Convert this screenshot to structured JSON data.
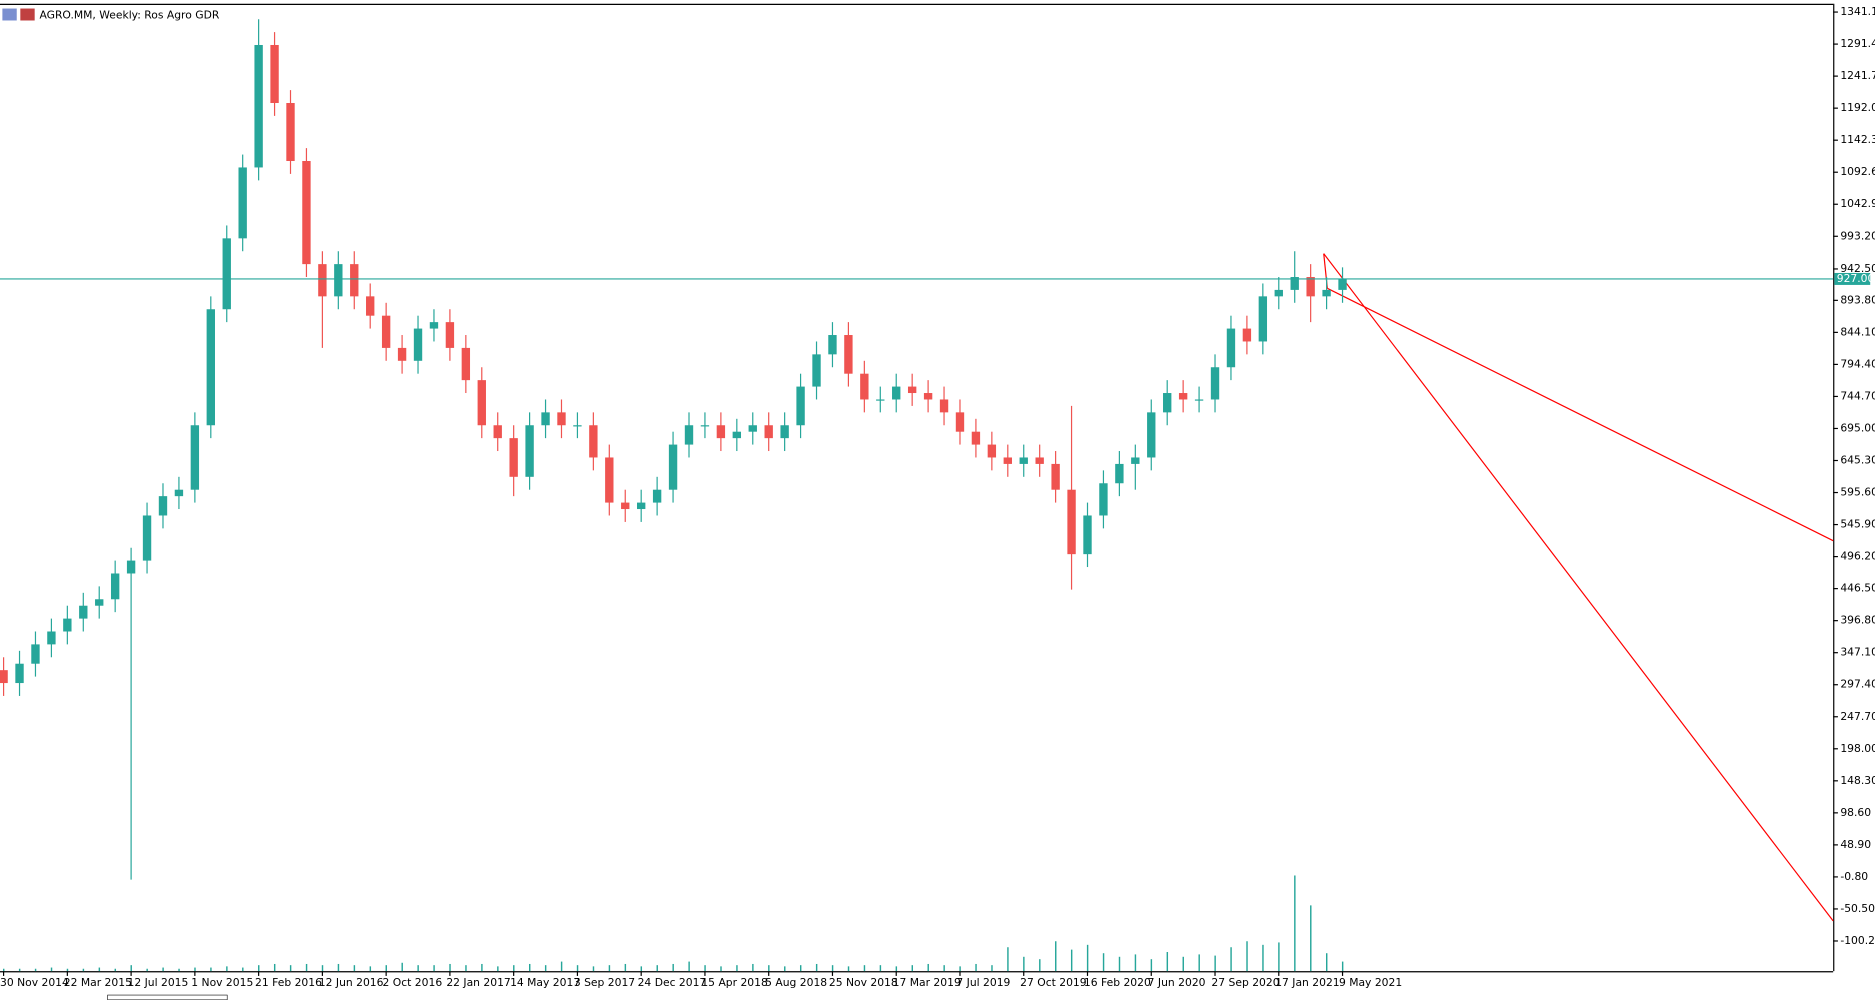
{
  "chart_data": {
    "type": "candlestick",
    "title": "AGRO.MM, Weekly:  Ros Agro GDR",
    "categories": [
      "30 Nov 2014",
      null,
      null,
      null,
      "22 Mar 2015",
      null,
      null,
      null,
      "12 Jul 2015",
      null,
      null,
      null,
      "1 Nov 2015",
      null,
      null,
      null,
      "21 Feb 2016",
      null,
      null,
      null,
      "12 Jun 2016",
      null,
      null,
      null,
      "2 Oct 2016",
      null,
      null,
      null,
      "22 Jan 2017",
      null,
      null,
      null,
      "14 May 2017",
      null,
      null,
      null,
      "3 Sep 2017",
      null,
      null,
      null,
      "24 Dec 2017",
      null,
      null,
      null,
      "15 Apr 2018",
      null,
      null,
      null,
      "5 Aug 2018",
      null,
      null,
      null,
      "25 Nov 2018",
      null,
      null,
      null,
      "17 Mar 2019",
      null,
      null,
      null,
      "7 Jul 2019",
      null,
      null,
      null,
      "27 Oct 2019",
      null,
      null,
      null,
      "16 Feb 2020",
      null,
      null,
      null,
      "7 Jun 2020",
      null,
      null,
      null,
      "27 Sep 2020",
      null,
      null,
      null,
      "17 Jan 2021",
      null,
      null,
      null,
      "9 May 2021"
    ],
    "open": [
      320,
      300,
      330,
      360,
      380,
      400,
      420,
      430,
      470,
      490,
      560,
      590,
      600,
      700,
      880,
      990,
      1100,
      1290,
      1200,
      1110,
      950,
      900,
      950,
      900,
      870,
      820,
      800,
      850,
      860,
      820,
      770,
      700,
      680,
      620,
      700,
      720,
      700,
      700,
      650,
      580,
      570,
      580,
      600,
      670,
      700,
      700,
      680,
      690,
      700,
      680,
      700,
      760,
      810,
      840,
      780,
      740,
      740,
      760,
      750,
      740,
      720,
      690,
      670,
      650,
      640,
      650,
      640,
      600,
      500,
      560,
      610,
      640,
      650,
      720,
      750,
      740,
      740,
      790,
      850,
      830,
      900,
      910,
      930,
      900,
      910
    ],
    "high": [
      340,
      350,
      380,
      400,
      420,
      440,
      450,
      490,
      510,
      580,
      610,
      620,
      720,
      900,
      1010,
      1120,
      1330,
      1310,
      1220,
      1130,
      970,
      970,
      970,
      920,
      890,
      840,
      870,
      880,
      880,
      840,
      790,
      720,
      700,
      720,
      740,
      740,
      720,
      720,
      670,
      600,
      600,
      620,
      690,
      720,
      720,
      720,
      710,
      720,
      720,
      720,
      780,
      830,
      860,
      860,
      800,
      760,
      780,
      780,
      770,
      760,
      740,
      710,
      690,
      670,
      670,
      670,
      660,
      730,
      580,
      630,
      660,
      670,
      740,
      770,
      770,
      760,
      810,
      870,
      870,
      920,
      930,
      970,
      950,
      930,
      945
    ],
    "low": [
      280,
      280,
      310,
      340,
      360,
      380,
      400,
      410,
      -5,
      470,
      540,
      570,
      580,
      680,
      860,
      970,
      1080,
      1180,
      1090,
      930,
      820,
      880,
      880,
      850,
      800,
      780,
      780,
      830,
      800,
      750,
      680,
      660,
      590,
      600,
      680,
      680,
      680,
      630,
      560,
      550,
      550,
      560,
      580,
      650,
      680,
      660,
      660,
      670,
      660,
      660,
      680,
      740,
      790,
      760,
      720,
      720,
      720,
      730,
      720,
      700,
      670,
      650,
      630,
      620,
      620,
      620,
      580,
      445,
      480,
      540,
      590,
      600,
      630,
      700,
      720,
      720,
      720,
      770,
      810,
      810,
      880,
      890,
      860,
      880,
      890
    ],
    "close": [
      300,
      330,
      360,
      380,
      400,
      420,
      430,
      470,
      490,
      560,
      590,
      600,
      700,
      880,
      990,
      1100,
      1290,
      1200,
      1110,
      950,
      900,
      950,
      900,
      870,
      820,
      800,
      850,
      860,
      820,
      770,
      700,
      680,
      620,
      700,
      720,
      700,
      700,
      650,
      580,
      570,
      580,
      600,
      670,
      700,
      700,
      680,
      690,
      700,
      680,
      700,
      760,
      810,
      840,
      780,
      740,
      740,
      760,
      750,
      740,
      720,
      690,
      670,
      650,
      640,
      650,
      640,
      600,
      500,
      560,
      610,
      640,
      650,
      720,
      750,
      740,
      740,
      790,
      850,
      830,
      900,
      910,
      930,
      900,
      910,
      927
    ],
    "volume": [
      2,
      2,
      2,
      3,
      2,
      2,
      3,
      2,
      5,
      2,
      3,
      2,
      3,
      3,
      4,
      3,
      5,
      6,
      5,
      6,
      5,
      6,
      5,
      4,
      5,
      7,
      5,
      5,
      6,
      5,
      6,
      4,
      5,
      6,
      5,
      8,
      5,
      4,
      5,
      6,
      4,
      5,
      6,
      8,
      5,
      4,
      5,
      6,
      5,
      4,
      5,
      6,
      5,
      4,
      5,
      5,
      4,
      5,
      6,
      5,
      4,
      6,
      5,
      20,
      12,
      10,
      25,
      18,
      22,
      15,
      12,
      14,
      10,
      16,
      12,
      14,
      13,
      20,
      25,
      22,
      24,
      80,
      55,
      15,
      8
    ],
    "up_color": "#26a69a",
    "down_color": "#ef5350",
    "volume_color": "#26a69a",
    "price_line": {
      "value": 927,
      "label": "927.00",
      "color": "#26a69a"
    },
    "ylim": [
      -147,
      1354
    ],
    "yticks": [
      {
        "value": 1341.1,
        "label": "1341.10"
      },
      {
        "value": 1291.4,
        "label": "1291.40"
      },
      {
        "value": 1241.7,
        "label": "1241.70"
      },
      {
        "value": 1192,
        "label": "1192.00"
      },
      {
        "value": 1142.3,
        "label": "1142.30"
      },
      {
        "value": 1092.6,
        "label": "1092.60"
      },
      {
        "value": 1042.9,
        "label": "1042.90"
      },
      {
        "value": 993.2,
        "label": "993.20"
      },
      {
        "value": 942.5,
        "label": "942.50"
      },
      {
        "value": 893.8,
        "label": "893.80"
      },
      {
        "value": 844.1,
        "label": "844.10"
      },
      {
        "value": 794.4,
        "label": "794.40"
      },
      {
        "value": 744.7,
        "label": "744.70"
      },
      {
        "value": 695,
        "label": "695.00"
      },
      {
        "value": 645.3,
        "label": "645.30"
      },
      {
        "value": 595.6,
        "label": "595.60"
      },
      {
        "value": 545.9,
        "label": "545.90"
      },
      {
        "value": 496.2,
        "label": "496.20"
      },
      {
        "value": 446.5,
        "label": "446.50"
      },
      {
        "value": 396.8,
        "label": "396.80"
      },
      {
        "value": 347.1,
        "label": "347.10"
      },
      {
        "value": 297.4,
        "label": "297.40"
      },
      {
        "value": 247.7,
        "label": "247.70"
      },
      {
        "value": 198,
        "label": "198.00"
      },
      {
        "value": 148.3,
        "label": "148.30"
      },
      {
        "value": 98.6,
        "label": "98.60"
      },
      {
        "value": 48.9,
        "label": "48.90"
      },
      {
        "value": -0.8,
        "label": "-0.80"
      },
      {
        "value": -50.5,
        "label": "-50.50"
      },
      {
        "value": -100.2,
        "label": "-100.20"
      }
    ]
  }
}
